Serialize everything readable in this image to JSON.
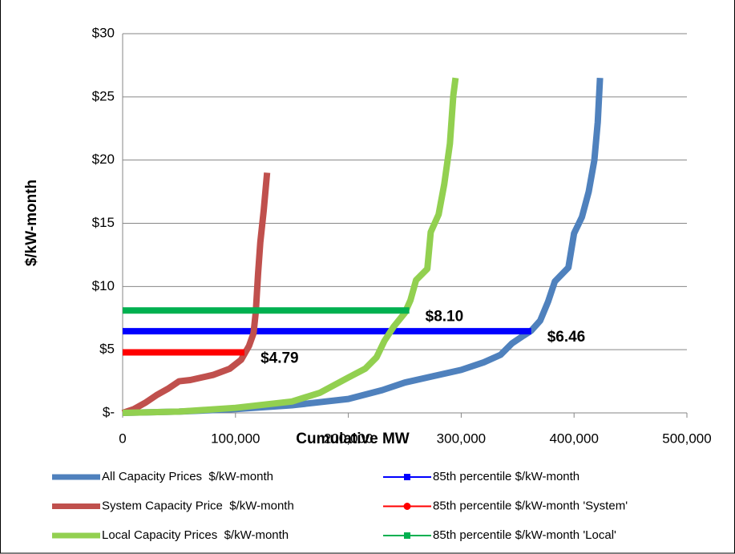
{
  "chart_data": {
    "type": "line",
    "x_label": "Cumulative MW",
    "y_label": "$/kW-month",
    "xlim": [
      0,
      500000
    ],
    "ylim": [
      0,
      30
    ],
    "xticks": [
      0,
      {
        "value": 100000,
        "label": "100,000"
      },
      {
        "value": 200000,
        "label": "200,000"
      },
      {
        "value": 300000,
        "label": "300,000"
      },
      {
        "value": 400000,
        "label": "400,000"
      },
      {
        "value": 500000,
        "label": "500,000"
      }
    ],
    "yticks": [
      {
        "value": 0,
        "label": "$-"
      },
      {
        "value": 5,
        "label": "$5"
      },
      {
        "value": 10,
        "label": "$10"
      },
      {
        "value": 15,
        "label": "$15"
      },
      {
        "value": 20,
        "label": "$20"
      },
      {
        "value": 25,
        "label": "$25"
      },
      {
        "value": 30,
        "label": "$30"
      }
    ],
    "grid": true,
    "legend": "bottom",
    "series": [
      {
        "name": "All Capacity Prices  $/kW-month",
        "color": "#4f81bd",
        "x": [
          0,
          50000,
          100000,
          150000,
          200000,
          230000,
          250000,
          275000,
          300000,
          320000,
          335000,
          345000,
          355000,
          362000,
          370000,
          377000,
          383000,
          395000,
          400000,
          407000,
          413000,
          418000,
          421000,
          423000
        ],
        "values": [
          0,
          0.1,
          0.3,
          0.6,
          1.1,
          1.8,
          2.4,
          2.9,
          3.4,
          4.0,
          4.6,
          5.5,
          6.1,
          6.5,
          7.3,
          8.8,
          10.4,
          11.5,
          14.2,
          15.5,
          17.5,
          20,
          23,
          26.5
        ]
      },
      {
        "name": "85th percentile $/kW-month",
        "color": "#0000ff",
        "marker": "square",
        "x": [
          0,
          362000
        ],
        "values": [
          6.46,
          6.46
        ],
        "value_labels": [
          null,
          "$6.46"
        ]
      },
      {
        "name": "System Capacity Price  $/kW-month",
        "color": "#c0504d",
        "x": [
          0,
          10000,
          20000,
          30000,
          40000,
          50000,
          60000,
          80000,
          95000,
          105000,
          112000,
          116000,
          118000,
          120000,
          122000,
          125000,
          128000
        ],
        "values": [
          0,
          0.3,
          0.8,
          1.4,
          1.9,
          2.5,
          2.6,
          3.0,
          3.5,
          4.2,
          5.3,
          6.3,
          8.0,
          11.0,
          13.5,
          16,
          19
        ]
      },
      {
        "name": "85th percentile $/kW-month 'System'",
        "color": "#ff0000",
        "marker": "circle",
        "x": [
          0,
          108000
        ],
        "values": [
          4.79,
          4.79
        ],
        "value_labels": [
          null,
          "$4.79"
        ]
      },
      {
        "name": "Local Capacity Prices  $/kW-month",
        "color": "#92d050",
        "x": [
          0,
          50000,
          100000,
          150000,
          175000,
          200000,
          215000,
          225000,
          232000,
          240000,
          250000,
          255000,
          260000,
          270000,
          273000,
          280000,
          285000,
          290000,
          293000,
          295000
        ],
        "values": [
          0,
          0.1,
          0.4,
          0.9,
          1.6,
          2.8,
          3.5,
          4.4,
          5.7,
          6.8,
          7.9,
          8.9,
          10.5,
          11.4,
          14.3,
          15.7,
          18.1,
          21.3,
          25.1,
          26.5
        ]
      },
      {
        "name": "85th percentile $/kW-month 'Local'",
        "color": "#00b050",
        "marker": "square",
        "x": [
          0,
          254000
        ],
        "values": [
          8.1,
          8.1
        ],
        "value_labels": [
          null,
          "$8.10"
        ]
      }
    ]
  }
}
